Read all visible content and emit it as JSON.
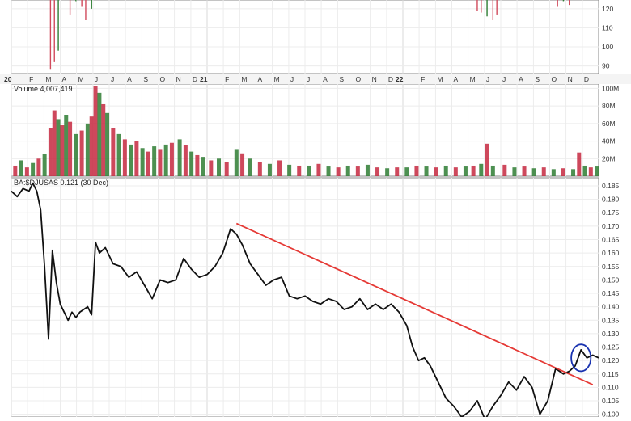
{
  "chart_data": [
    {
      "type": "bar",
      "panel": "price",
      "title": "",
      "ylabel": "",
      "y_ticks": [
        "90",
        "100",
        "110",
        "120"
      ],
      "ylim": [
        86,
        128
      ],
      "colors": {
        "up": "#d14a5c",
        "down": "#2e7d32"
      },
      "bars": [
        {
          "x": 2020.2,
          "high": 128,
          "low": 88,
          "up": true
        },
        {
          "x": 2020.22,
          "high": 128,
          "low": 92,
          "up": true
        },
        {
          "x": 2020.24,
          "high": 128,
          "low": 98,
          "up": false
        },
        {
          "x": 2020.3,
          "high": 128,
          "low": 117,
          "up": true
        },
        {
          "x": 2020.33,
          "high": 128,
          "low": 124,
          "up": false
        },
        {
          "x": 2020.36,
          "high": 128,
          "low": 121,
          "up": true
        },
        {
          "x": 2020.38,
          "high": 128,
          "low": 114,
          "up": true
        },
        {
          "x": 2020.41,
          "high": 128,
          "low": 120,
          "up": false
        },
        {
          "x": 2022.38,
          "high": 128,
          "low": 119,
          "up": true
        },
        {
          "x": 2022.4,
          "high": 128,
          "low": 118,
          "up": true
        },
        {
          "x": 2022.43,
          "high": 128,
          "low": 116,
          "up": false
        },
        {
          "x": 2022.46,
          "high": 128,
          "low": 114,
          "up": true
        },
        {
          "x": 2022.48,
          "high": 128,
          "low": 117,
          "up": true
        },
        {
          "x": 2022.79,
          "high": 128,
          "low": 121,
          "up": true
        },
        {
          "x": 2022.82,
          "high": 128,
          "low": 124,
          "up": false
        },
        {
          "x": 2022.85,
          "high": 128,
          "low": 122,
          "up": true
        }
      ]
    },
    {
      "type": "bar",
      "panel": "volume",
      "label": "Volume 4,007,419",
      "y_ticks": [
        "20M",
        "40M",
        "60M",
        "80M",
        "100M"
      ],
      "ylim": [
        0,
        105
      ],
      "colors": {
        "up": "#2e7d32",
        "down": "#c62840"
      },
      "values": [
        {
          "x": 2020.02,
          "v": 12,
          "up": false
        },
        {
          "x": 2020.05,
          "v": 18,
          "up": true
        },
        {
          "x": 2020.08,
          "v": 10,
          "up": false
        },
        {
          "x": 2020.11,
          "v": 15,
          "up": true
        },
        {
          "x": 2020.14,
          "v": 20,
          "up": false
        },
        {
          "x": 2020.17,
          "v": 25,
          "up": true
        },
        {
          "x": 2020.2,
          "v": 55,
          "up": false
        },
        {
          "x": 2020.22,
          "v": 75,
          "up": false
        },
        {
          "x": 2020.24,
          "v": 65,
          "up": true
        },
        {
          "x": 2020.26,
          "v": 58,
          "up": false
        },
        {
          "x": 2020.28,
          "v": 70,
          "up": true
        },
        {
          "x": 2020.3,
          "v": 62,
          "up": false
        },
        {
          "x": 2020.33,
          "v": 48,
          "up": true
        },
        {
          "x": 2020.36,
          "v": 52,
          "up": false
        },
        {
          "x": 2020.39,
          "v": 60,
          "up": true
        },
        {
          "x": 2020.41,
          "v": 68,
          "up": false
        },
        {
          "x": 2020.43,
          "v": 103,
          "up": false
        },
        {
          "x": 2020.45,
          "v": 95,
          "up": true
        },
        {
          "x": 2020.47,
          "v": 82,
          "up": false
        },
        {
          "x": 2020.49,
          "v": 72,
          "up": true
        },
        {
          "x": 2020.52,
          "v": 55,
          "up": false
        },
        {
          "x": 2020.55,
          "v": 48,
          "up": true
        },
        {
          "x": 2020.58,
          "v": 42,
          "up": false
        },
        {
          "x": 2020.61,
          "v": 36,
          "up": true
        },
        {
          "x": 2020.64,
          "v": 40,
          "up": false
        },
        {
          "x": 2020.67,
          "v": 32,
          "up": true
        },
        {
          "x": 2020.7,
          "v": 28,
          "up": false
        },
        {
          "x": 2020.73,
          "v": 34,
          "up": true
        },
        {
          "x": 2020.76,
          "v": 30,
          "up": false
        },
        {
          "x": 2020.79,
          "v": 36,
          "up": true
        },
        {
          "x": 2020.82,
          "v": 38,
          "up": false
        },
        {
          "x": 2020.86,
          "v": 42,
          "up": true
        },
        {
          "x": 2020.89,
          "v": 35,
          "up": false
        },
        {
          "x": 2020.92,
          "v": 28,
          "up": true
        },
        {
          "x": 2020.95,
          "v": 24,
          "up": false
        },
        {
          "x": 2020.98,
          "v": 22,
          "up": true
        },
        {
          "x": 2021.02,
          "v": 18,
          "up": false
        },
        {
          "x": 2021.06,
          "v": 20,
          "up": true
        },
        {
          "x": 2021.1,
          "v": 16,
          "up": false
        },
        {
          "x": 2021.15,
          "v": 30,
          "up": true
        },
        {
          "x": 2021.18,
          "v": 26,
          "up": false
        },
        {
          "x": 2021.22,
          "v": 20,
          "up": true
        },
        {
          "x": 2021.27,
          "v": 16,
          "up": false
        },
        {
          "x": 2021.32,
          "v": 14,
          "up": true
        },
        {
          "x": 2021.37,
          "v": 18,
          "up": false
        },
        {
          "x": 2021.42,
          "v": 13,
          "up": true
        },
        {
          "x": 2021.47,
          "v": 12,
          "up": false
        },
        {
          "x": 2021.52,
          "v": 12,
          "up": true
        },
        {
          "x": 2021.57,
          "v": 14,
          "up": false
        },
        {
          "x": 2021.62,
          "v": 11,
          "up": true
        },
        {
          "x": 2021.67,
          "v": 10,
          "up": false
        },
        {
          "x": 2021.72,
          "v": 12,
          "up": true
        },
        {
          "x": 2021.77,
          "v": 11,
          "up": false
        },
        {
          "x": 2021.82,
          "v": 13,
          "up": true
        },
        {
          "x": 2021.87,
          "v": 10,
          "up": false
        },
        {
          "x": 2021.92,
          "v": 9,
          "up": true
        },
        {
          "x": 2021.97,
          "v": 10,
          "up": false
        },
        {
          "x": 2022.02,
          "v": 10,
          "up": true
        },
        {
          "x": 2022.07,
          "v": 12,
          "up": false
        },
        {
          "x": 2022.12,
          "v": 11,
          "up": true
        },
        {
          "x": 2022.17,
          "v": 10,
          "up": false
        },
        {
          "x": 2022.22,
          "v": 12,
          "up": true
        },
        {
          "x": 2022.27,
          "v": 10,
          "up": false
        },
        {
          "x": 2022.32,
          "v": 11,
          "up": true
        },
        {
          "x": 2022.36,
          "v": 12,
          "up": false
        },
        {
          "x": 2022.4,
          "v": 14,
          "up": true
        },
        {
          "x": 2022.43,
          "v": 37,
          "up": false
        },
        {
          "x": 2022.46,
          "v": 12,
          "up": true
        },
        {
          "x": 2022.52,
          "v": 13,
          "up": false
        },
        {
          "x": 2022.57,
          "v": 10,
          "up": true
        },
        {
          "x": 2022.62,
          "v": 11,
          "up": false
        },
        {
          "x": 2022.67,
          "v": 9,
          "up": true
        },
        {
          "x": 2022.72,
          "v": 10,
          "up": false
        },
        {
          "x": 2022.77,
          "v": 8,
          "up": true
        },
        {
          "x": 2022.82,
          "v": 9,
          "up": false
        },
        {
          "x": 2022.87,
          "v": 8,
          "up": true
        },
        {
          "x": 2022.9,
          "v": 27,
          "up": false
        },
        {
          "x": 2022.93,
          "v": 12,
          "up": true
        },
        {
          "x": 2022.96,
          "v": 10,
          "up": false
        },
        {
          "x": 2022.99,
          "v": 11,
          "up": true
        }
      ]
    },
    {
      "type": "line",
      "panel": "ratio",
      "label": "BA:$DJUSAS 0.121 (30 Dec)",
      "title": "",
      "xlabel": "",
      "ylabel": "",
      "xlim": [
        2020.0,
        2023.0
      ],
      "ylim": [
        0.099,
        0.188
      ],
      "y_ticks": [
        "0.100",
        "0.105",
        "0.110",
        "0.115",
        "0.120",
        "0.125",
        "0.130",
        "0.135",
        "0.140",
        "0.145",
        "0.150",
        "0.155",
        "0.160",
        "0.165",
        "0.170",
        "0.175",
        "0.180",
        "0.185"
      ],
      "grid": true,
      "line_color": "#111111",
      "x": [
        2020.0,
        2020.03,
        2020.06,
        2020.09,
        2020.11,
        2020.13,
        2020.15,
        2020.17,
        2020.19,
        2020.21,
        2020.23,
        2020.25,
        2020.27,
        2020.29,
        2020.31,
        2020.33,
        2020.35,
        2020.37,
        2020.39,
        2020.41,
        2020.43,
        2020.45,
        2020.48,
        2020.52,
        2020.56,
        2020.6,
        2020.64,
        2020.68,
        2020.72,
        2020.76,
        2020.8,
        2020.84,
        2020.88,
        2020.92,
        2020.96,
        2021.0,
        2021.04,
        2021.08,
        2021.12,
        2021.15,
        2021.18,
        2021.22,
        2021.26,
        2021.3,
        2021.34,
        2021.38,
        2021.42,
        2021.46,
        2021.5,
        2021.54,
        2021.58,
        2021.62,
        2021.66,
        2021.7,
        2021.74,
        2021.78,
        2021.82,
        2021.86,
        2021.9,
        2021.94,
        2021.98,
        2022.02,
        2022.05,
        2022.08,
        2022.11,
        2022.14,
        2022.18,
        2022.22,
        2022.26,
        2022.3,
        2022.34,
        2022.38,
        2022.42,
        2022.46,
        2022.5,
        2022.54,
        2022.58,
        2022.62,
        2022.66,
        2022.7,
        2022.74,
        2022.78,
        2022.82,
        2022.85,
        2022.88,
        2022.91,
        2022.94,
        2022.97,
        2023.0
      ],
      "y": [
        0.183,
        0.181,
        0.184,
        0.183,
        0.186,
        0.183,
        0.176,
        0.155,
        0.128,
        0.161,
        0.149,
        0.141,
        0.138,
        0.135,
        0.138,
        0.136,
        0.138,
        0.139,
        0.14,
        0.137,
        0.164,
        0.16,
        0.162,
        0.156,
        0.155,
        0.151,
        0.153,
        0.148,
        0.143,
        0.15,
        0.149,
        0.15,
        0.158,
        0.154,
        0.151,
        0.152,
        0.155,
        0.16,
        0.169,
        0.167,
        0.163,
        0.156,
        0.152,
        0.148,
        0.15,
        0.151,
        0.144,
        0.143,
        0.144,
        0.142,
        0.141,
        0.143,
        0.142,
        0.139,
        0.14,
        0.143,
        0.139,
        0.141,
        0.139,
        0.141,
        0.138,
        0.133,
        0.125,
        0.12,
        0.121,
        0.118,
        0.112,
        0.106,
        0.103,
        0.099,
        0.101,
        0.105,
        0.098,
        0.103,
        0.107,
        0.112,
        0.109,
        0.114,
        0.11,
        0.1,
        0.105,
        0.117,
        0.115,
        0.116,
        0.118,
        0.124,
        0.121,
        0.122,
        0.121
      ],
      "annotations": [
        {
          "type": "trendline",
          "color": "#e53935",
          "from": [
            2021.15,
            0.171
          ],
          "to": [
            2022.97,
            0.111
          ]
        },
        {
          "type": "circle",
          "color": "#1a33b0",
          "center": [
            2022.91,
            0.121
          ],
          "radius_x": 0.05,
          "radius_y": 0.005
        }
      ]
    }
  ],
  "x_axis_labels": [
    {
      "x": 2020.0,
      "label": "20",
      "bold": true
    },
    {
      "x": 2020.083,
      "label": "F"
    },
    {
      "x": 2020.167,
      "label": "M"
    },
    {
      "x": 2020.25,
      "label": "A"
    },
    {
      "x": 2020.333,
      "label": "M"
    },
    {
      "x": 2020.417,
      "label": "J"
    },
    {
      "x": 2020.5,
      "label": "J"
    },
    {
      "x": 2020.583,
      "label": "A"
    },
    {
      "x": 2020.667,
      "label": "S"
    },
    {
      "x": 2020.75,
      "label": "O"
    },
    {
      "x": 2020.833,
      "label": "N"
    },
    {
      "x": 2020.917,
      "label": "D"
    },
    {
      "x": 2021.0,
      "label": "21",
      "bold": true
    },
    {
      "x": 2021.083,
      "label": "F"
    },
    {
      "x": 2021.167,
      "label": "M"
    },
    {
      "x": 2021.25,
      "label": "A"
    },
    {
      "x": 2021.333,
      "label": "M"
    },
    {
      "x": 2021.417,
      "label": "J"
    },
    {
      "x": 2021.5,
      "label": "J"
    },
    {
      "x": 2021.583,
      "label": "A"
    },
    {
      "x": 2021.667,
      "label": "S"
    },
    {
      "x": 2021.75,
      "label": "O"
    },
    {
      "x": 2021.833,
      "label": "N"
    },
    {
      "x": 2021.917,
      "label": "D"
    },
    {
      "x": 2022.0,
      "label": "22",
      "bold": true
    },
    {
      "x": 2022.083,
      "label": "F"
    },
    {
      "x": 2022.167,
      "label": "M"
    },
    {
      "x": 2022.25,
      "label": "A"
    },
    {
      "x": 2022.333,
      "label": "M"
    },
    {
      "x": 2022.417,
      "label": "J"
    },
    {
      "x": 2022.5,
      "label": "J"
    },
    {
      "x": 2022.583,
      "label": "A"
    },
    {
      "x": 2022.667,
      "label": "S"
    },
    {
      "x": 2022.75,
      "label": "O"
    },
    {
      "x": 2022.833,
      "label": "N"
    },
    {
      "x": 2022.917,
      "label": "D"
    }
  ]
}
